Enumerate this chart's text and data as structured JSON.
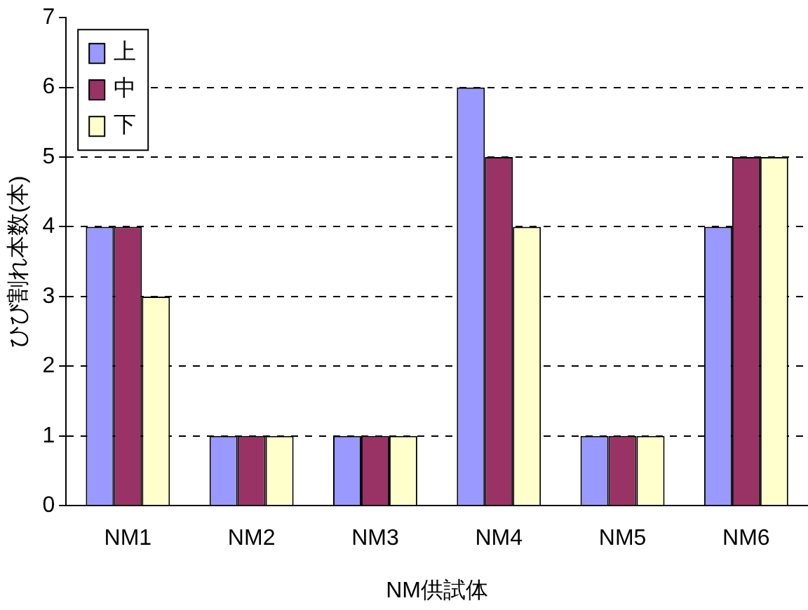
{
  "chart_data": {
    "type": "bar",
    "xlabel": "NM供試体",
    "ylabel": "ひび割れ本数(本)",
    "categories": [
      "NM1",
      "NM2",
      "NM3",
      "NM4",
      "NM5",
      "NM6"
    ],
    "series": [
      {
        "name": "上",
        "color": "#9999ff",
        "values": [
          4,
          1,
          1,
          6,
          1,
          4
        ]
      },
      {
        "name": "中",
        "color": "#993366",
        "values": [
          4,
          1,
          1,
          5,
          1,
          5
        ]
      },
      {
        "name": "下",
        "color": "#ffffcc",
        "values": [
          3,
          1,
          1,
          4,
          1,
          5
        ]
      }
    ],
    "ylim": [
      0,
      7
    ],
    "yticks": [
      0,
      1,
      2,
      3,
      4,
      5,
      6,
      7
    ],
    "grid": "y",
    "legend": "top left"
  }
}
